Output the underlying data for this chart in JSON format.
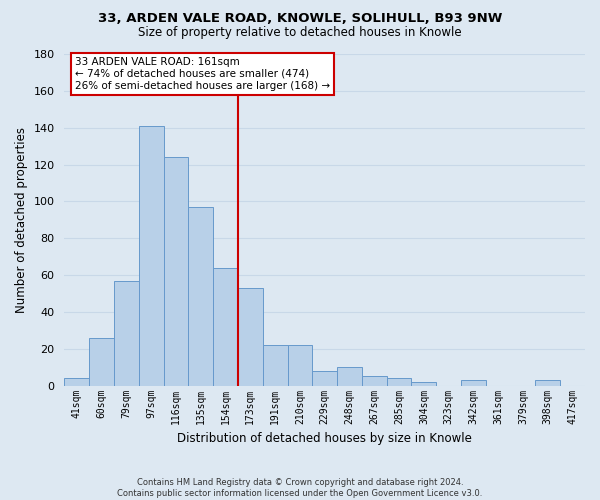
{
  "title": "33, ARDEN VALE ROAD, KNOWLE, SOLIHULL, B93 9NW",
  "subtitle": "Size of property relative to detached houses in Knowle",
  "xlabel": "Distribution of detached houses by size in Knowle",
  "ylabel": "Number of detached properties",
  "bar_labels": [
    "41sqm",
    "60sqm",
    "79sqm",
    "97sqm",
    "116sqm",
    "135sqm",
    "154sqm",
    "173sqm",
    "191sqm",
    "210sqm",
    "229sqm",
    "248sqm",
    "267sqm",
    "285sqm",
    "304sqm",
    "323sqm",
    "342sqm",
    "361sqm",
    "379sqm",
    "398sqm",
    "417sqm"
  ],
  "bar_values": [
    4,
    26,
    57,
    141,
    124,
    97,
    64,
    53,
    22,
    22,
    8,
    10,
    5,
    4,
    2,
    0,
    3,
    0,
    0,
    3,
    0
  ],
  "bar_color": "#b8d0e8",
  "bar_edge_color": "#6699cc",
  "vline_color": "#cc0000",
  "ylim": [
    0,
    180
  ],
  "yticks": [
    0,
    20,
    40,
    60,
    80,
    100,
    120,
    140,
    160,
    180
  ],
  "annotation_title": "33 ARDEN VALE ROAD: 161sqm",
  "annotation_line1": "← 74% of detached houses are smaller (474)",
  "annotation_line2": "26% of semi-detached houses are larger (168) →",
  "annotation_box_color": "#ffffff",
  "annotation_box_edge": "#cc0000",
  "footer1": "Contains HM Land Registry data © Crown copyright and database right 2024.",
  "footer2": "Contains public sector information licensed under the Open Government Licence v3.0.",
  "grid_color": "#c8d8e8",
  "background_color": "#dde8f2"
}
